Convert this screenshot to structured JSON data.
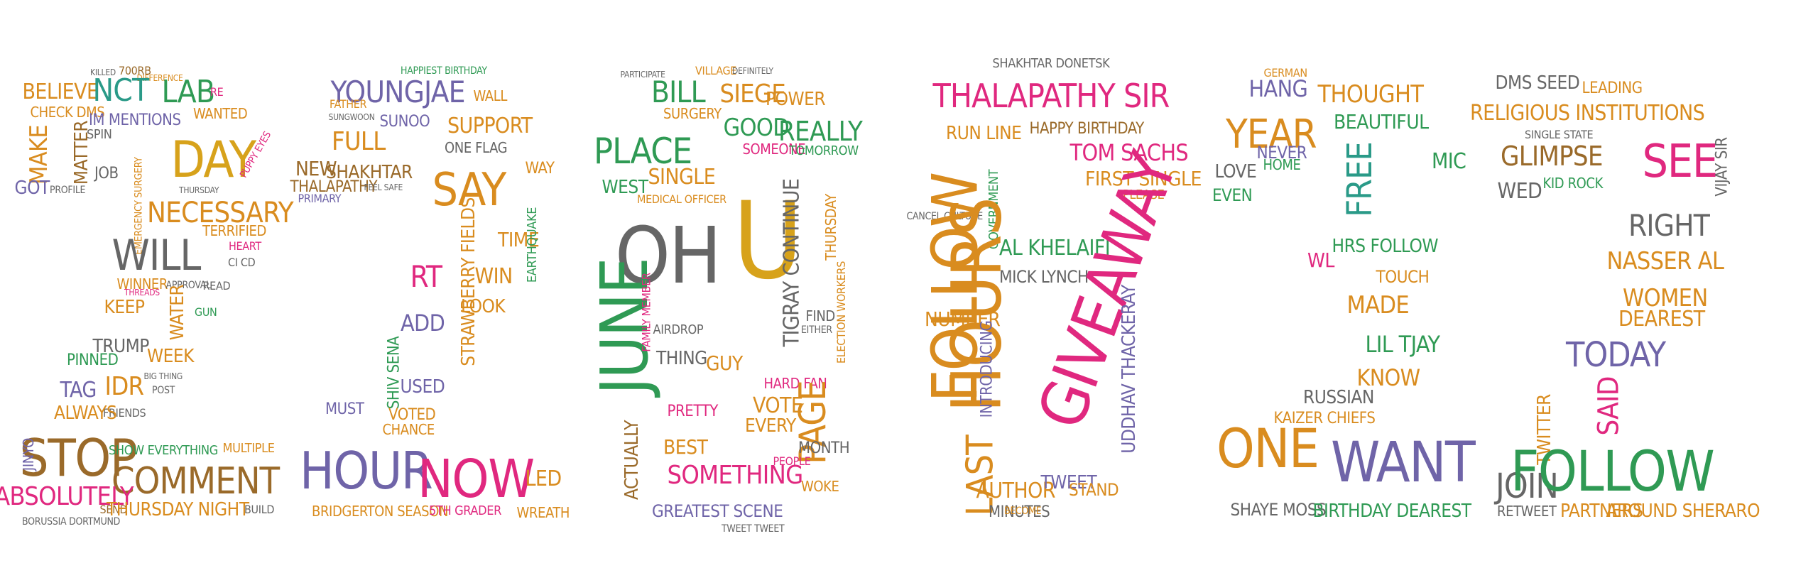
{
  "palette": {
    "orange": "#d98c1f",
    "green": "#2f9a54",
    "purple": "#6f64a8",
    "pink": "#e0287f",
    "teal": "#2a9a88",
    "brown": "#9a6a2a",
    "gray": "#666666",
    "gold": "#d7a21b",
    "red": "#d63a3a",
    "blue": "#4a6fa8"
  },
  "words": [
    {
      "text": "700RB",
      "color": "brown"
    },
    {
      "text": "DIFFERENCE",
      "color": "orange"
    },
    {
      "text": "KILLED",
      "color": "gray"
    },
    {
      "text": "BELIEVE",
      "color": "orange"
    },
    {
      "text": "CHECK DMS",
      "color": "orange"
    },
    {
      "text": "NCT",
      "color": "teal"
    },
    {
      "text": "LAB",
      "color": "green"
    },
    {
      "text": "RE",
      "color": "pink"
    },
    {
      "text": "WANTED",
      "color": "orange"
    },
    {
      "text": "IM MENTIONS",
      "color": "purple"
    },
    {
      "text": "SPIN",
      "color": "gray"
    },
    {
      "text": "MAKE",
      "color": "orange"
    },
    {
      "text": "MATTER",
      "color": "brown"
    },
    {
      "text": "DAY",
      "color": "gold"
    },
    {
      "text": "JOB",
      "color": "gray"
    },
    {
      "text": "GOT",
      "color": "purple"
    },
    {
      "text": "PROFILE",
      "color": "gray"
    },
    {
      "text": "THURSDAY",
      "color": "gray"
    },
    {
      "text": "PUPPY EYES",
      "color": "pink"
    },
    {
      "text": "EMERGENCY SURGERY",
      "color": "orange"
    },
    {
      "text": "NECESSARY",
      "color": "orange"
    },
    {
      "text": "TERRIFIED",
      "color": "orange"
    },
    {
      "text": "HEART",
      "color": "pink"
    },
    {
      "text": "WILL",
      "color": "gray"
    },
    {
      "text": "CI CD",
      "color": "gray"
    },
    {
      "text": "THREADS",
      "color": "pink"
    },
    {
      "text": "WINNER",
      "color": "orange"
    },
    {
      "text": "APPROVAL",
      "color": "gray"
    },
    {
      "text": "READ",
      "color": "gray"
    },
    {
      "text": "KEEP",
      "color": "orange"
    },
    {
      "text": "WATER",
      "color": "orange"
    },
    {
      "text": "GUN",
      "color": "green"
    },
    {
      "text": "TRUMP",
      "color": "gray"
    },
    {
      "text": "WEEK",
      "color": "orange"
    },
    {
      "text": "PINNED",
      "color": "green"
    },
    {
      "text": "BIG THING",
      "color": "gray"
    },
    {
      "text": "POST",
      "color": "gray"
    },
    {
      "text": "TAG",
      "color": "purple"
    },
    {
      "text": "IDR",
      "color": "orange"
    },
    {
      "text": "FRIENDS",
      "color": "gray"
    },
    {
      "text": "ALWAYS",
      "color": "orange"
    },
    {
      "text": "STOP",
      "color": "brown"
    },
    {
      "text": "SHOW EVERYTHING",
      "color": "green"
    },
    {
      "text": "MULTIPLE",
      "color": "orange"
    },
    {
      "text": "JINYO",
      "color": "purple"
    },
    {
      "text": "COMMENT",
      "color": "brown"
    },
    {
      "text": "ABSOLUTELY",
      "color": "pink"
    },
    {
      "text": "SEND",
      "color": "brown"
    },
    {
      "text": "THURSDAY NIGHT",
      "color": "orange"
    },
    {
      "text": "BUILD",
      "color": "gray"
    },
    {
      "text": "BORUSSIA DORTMUND",
      "color": "gray"
    },
    {
      "text": "HAPPIEST BIRTHDAY",
      "color": "green"
    },
    {
      "text": "YOUNGJAE",
      "color": "purple"
    },
    {
      "text": "WALL",
      "color": "orange"
    },
    {
      "text": "FATHER",
      "color": "orange"
    },
    {
      "text": "SUNGWOON",
      "color": "gray"
    },
    {
      "text": "SUNOO",
      "color": "purple"
    },
    {
      "text": "SUPPORT",
      "color": "orange"
    },
    {
      "text": "FULL",
      "color": "orange"
    },
    {
      "text": "ONE FLAG",
      "color": "gray"
    },
    {
      "text": "NEW",
      "color": "brown"
    },
    {
      "text": "SHAKHTAR",
      "color": "brown"
    },
    {
      "text": "SAY",
      "color": "orange"
    },
    {
      "text": "WAY",
      "color": "orange"
    },
    {
      "text": "THALAPATHY",
      "color": "brown"
    },
    {
      "text": "FEEL SAFE",
      "color": "gray"
    },
    {
      "text": "PRIMARY",
      "color": "purple"
    },
    {
      "text": "TIME",
      "color": "orange"
    },
    {
      "text": "EARTHQUAKE",
      "color": "green"
    },
    {
      "text": "STRAWBERRY FIELDS",
      "color": "orange"
    },
    {
      "text": "WIN",
      "color": "orange"
    },
    {
      "text": "RT",
      "color": "pink"
    },
    {
      "text": "ADD",
      "color": "purple"
    },
    {
      "text": "LOOK",
      "color": "orange"
    },
    {
      "text": "SHIV SENA",
      "color": "green"
    },
    {
      "text": "USED",
      "color": "purple"
    },
    {
      "text": "MUST",
      "color": "purple"
    },
    {
      "text": "VOTED",
      "color": "orange"
    },
    {
      "text": "CHANCE",
      "color": "orange"
    },
    {
      "text": "HOUR",
      "color": "purple"
    },
    {
      "text": "NOW",
      "color": "pink"
    },
    {
      "text": "LED",
      "color": "orange"
    },
    {
      "text": "BRIDGERTON SEASON",
      "color": "orange"
    },
    {
      "text": "5TH GRADER",
      "color": "pink"
    },
    {
      "text": "WREATH",
      "color": "orange"
    },
    {
      "text": "PARTICIPATE",
      "color": "gray"
    },
    {
      "text": "VILLAGE",
      "color": "orange"
    },
    {
      "text": "DEFINITELY",
      "color": "gray"
    },
    {
      "text": "BILL",
      "color": "green"
    },
    {
      "text": "SIEGE",
      "color": "orange"
    },
    {
      "text": "POWER",
      "color": "orange"
    },
    {
      "text": "SURGERY",
      "color": "orange"
    },
    {
      "text": "GOOD",
      "color": "green"
    },
    {
      "text": "REALLY",
      "color": "green"
    },
    {
      "text": "PLACE",
      "color": "green"
    },
    {
      "text": "SOMEONE",
      "color": "pink"
    },
    {
      "text": "TOMORROW",
      "color": "green"
    },
    {
      "text": "SINGLE",
      "color": "orange"
    },
    {
      "text": "WEST",
      "color": "green"
    },
    {
      "text": "MEDICAL OFFICER",
      "color": "orange"
    },
    {
      "text": "OH",
      "color": "gray"
    },
    {
      "text": "U",
      "color": "gold"
    },
    {
      "text": "TIGRAY CONTINUE",
      "color": "gray"
    },
    {
      "text": "THURSDAY",
      "color": "orange"
    },
    {
      "text": "JUNE",
      "color": "green"
    },
    {
      "text": "FAMILY MEMBER",
      "color": "pink"
    },
    {
      "text": "AIRDROP",
      "color": "gray"
    },
    {
      "text": "THING",
      "color": "gray"
    },
    {
      "text": "FIND",
      "color": "gray"
    },
    {
      "text": "EITHER",
      "color": "gray"
    },
    {
      "text": "ELECTION WORKERS",
      "color": "orange"
    },
    {
      "text": "GUY",
      "color": "orange"
    },
    {
      "text": "HARD FAN",
      "color": "pink"
    },
    {
      "text": "PAGE",
      "color": "orange"
    },
    {
      "text": "VOTE",
      "color": "orange"
    },
    {
      "text": "EVERY",
      "color": "orange"
    },
    {
      "text": "PRETTY",
      "color": "pink"
    },
    {
      "text": "BEST",
      "color": "orange"
    },
    {
      "text": "MONTH",
      "color": "gray"
    },
    {
      "text": "PEOPLE",
      "color": "pink"
    },
    {
      "text": "ACTUALLY",
      "color": "brown"
    },
    {
      "text": "SOMETHING",
      "color": "pink"
    },
    {
      "text": "WOKE",
      "color": "orange"
    },
    {
      "text": "GREATEST SCENE",
      "color": "purple"
    },
    {
      "text": "TWEET TWEET",
      "color": "gray"
    },
    {
      "text": "SHAKHTAR DONETSK",
      "color": "gray"
    },
    {
      "text": "THALAPATHY SIR",
      "color": "pink"
    },
    {
      "text": "RUN LINE",
      "color": "orange"
    },
    {
      "text": "HAPPY BIRTHDAY",
      "color": "brown"
    },
    {
      "text": "TOM SACHS",
      "color": "pink"
    },
    {
      "text": "FIRST SINGLE",
      "color": "orange"
    },
    {
      "text": "PLEASE",
      "color": "orange"
    },
    {
      "text": "CANCEL CULTURE",
      "color": "gray"
    },
    {
      "text": "GOVERNMENT",
      "color": "green"
    },
    {
      "text": "HOURS",
      "color": "orange"
    },
    {
      "text": "FOLLOW",
      "color": "orange"
    },
    {
      "text": "AL KHELAIFI",
      "color": "green"
    },
    {
      "text": "MICK LYNCH",
      "color": "gray"
    },
    {
      "text": "GIVEAWAY",
      "color": "pink"
    },
    {
      "text": "UDDHAV THACKERAY",
      "color": "purple"
    },
    {
      "text": "NUMBER",
      "color": "orange"
    },
    {
      "text": "INTRODUCING",
      "color": "purple"
    },
    {
      "text": "LAST",
      "color": "orange"
    },
    {
      "text": "AUTHOR",
      "color": "orange"
    },
    {
      "text": "TWEET",
      "color": "purple"
    },
    {
      "text": "STAND",
      "color": "orange"
    },
    {
      "text": "MINUTES",
      "color": "gray"
    },
    {
      "text": "BECOME",
      "color": "orange"
    },
    {
      "text": "HANG",
      "color": "purple"
    },
    {
      "text": "GERMAN",
      "color": "orange"
    },
    {
      "text": "THOUGHT",
      "color": "orange"
    },
    {
      "text": "YEAR",
      "color": "orange"
    },
    {
      "text": "BEAUTIFUL",
      "color": "green"
    },
    {
      "text": "NEVER",
      "color": "purple"
    },
    {
      "text": "LOVE",
      "color": "gray"
    },
    {
      "text": "HOME",
      "color": "green"
    },
    {
      "text": "FREE",
      "color": "teal"
    },
    {
      "text": "MIC",
      "color": "green"
    },
    {
      "text": "EVEN",
      "color": "green"
    },
    {
      "text": "HRS FOLLOW",
      "color": "green"
    },
    {
      "text": "WL",
      "color": "pink"
    },
    {
      "text": "TOUCH",
      "color": "orange"
    },
    {
      "text": "MADE",
      "color": "orange"
    },
    {
      "text": "LIL TJAY",
      "color": "green"
    },
    {
      "text": "KNOW",
      "color": "orange"
    },
    {
      "text": "RUSSIAN",
      "color": "gray"
    },
    {
      "text": "KAIZER CHIEFS",
      "color": "orange"
    },
    {
      "text": "ONE",
      "color": "orange"
    },
    {
      "text": "WANT",
      "color": "purple"
    },
    {
      "text": "SHAYE MOSS",
      "color": "gray"
    },
    {
      "text": "BIRTHDAY DEAREST",
      "color": "green"
    },
    {
      "text": "DMS SEED",
      "color": "gray"
    },
    {
      "text": "LEADING",
      "color": "orange"
    },
    {
      "text": "RELIGIOUS INSTITUTIONS",
      "color": "orange"
    },
    {
      "text": "SINGLE STATE",
      "color": "gray"
    },
    {
      "text": "GLIMPSE",
      "color": "brown"
    },
    {
      "text": "SEE",
      "color": "pink"
    },
    {
      "text": "VIJAY SIR",
      "color": "gray"
    },
    {
      "text": "WED",
      "color": "gray"
    },
    {
      "text": "KID ROCK",
      "color": "green"
    },
    {
      "text": "RIGHT",
      "color": "gray"
    },
    {
      "text": "NASSER AL",
      "color": "orange"
    },
    {
      "text": "WOMEN",
      "color": "orange"
    },
    {
      "text": "DEAREST",
      "color": "orange"
    },
    {
      "text": "TODAY",
      "color": "purple"
    },
    {
      "text": "SAID",
      "color": "pink"
    },
    {
      "text": "TWITTER",
      "color": "orange"
    },
    {
      "text": "JOIN",
      "color": "gray"
    },
    {
      "text": "FOLLOW",
      "color": "green"
    },
    {
      "text": "RETWEET",
      "color": "gray"
    },
    {
      "text": "PARTNERS",
      "color": "orange"
    },
    {
      "text": "AROUND SHERARO",
      "color": "orange"
    }
  ]
}
